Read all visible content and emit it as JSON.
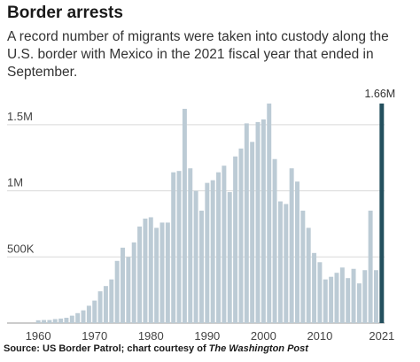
{
  "chart_data": {
    "type": "bar",
    "title": "Border arrests",
    "subtitle": "A record number of migrants were taken into custody along the U.S. border with Mexico in the 2021 fiscal year that ended in September.",
    "xlabel": "",
    "ylabel": "",
    "ylim": [
      0,
      1700000
    ],
    "y_ticks": [
      {
        "value": 500000,
        "label": "500K"
      },
      {
        "value": 1000000,
        "label": "1M"
      },
      {
        "value": 1500000,
        "label": "1.5M"
      }
    ],
    "x_ticks": [
      {
        "value": 1960,
        "label": "1960"
      },
      {
        "value": 1970,
        "label": "1970"
      },
      {
        "value": 1980,
        "label": "1980"
      },
      {
        "value": 1990,
        "label": "1990"
      },
      {
        "value": 2000,
        "label": "2000"
      },
      {
        "value": 2010,
        "label": "2010"
      },
      {
        "value": 2021,
        "label": "2021"
      }
    ],
    "grid": true,
    "highlight": {
      "year": 2021,
      "label": "1.66M",
      "color": "#24505e"
    },
    "bar_color": "#bccbd5",
    "years": [
      1960,
      1961,
      1962,
      1963,
      1964,
      1965,
      1966,
      1967,
      1968,
      1969,
      1970,
      1971,
      1972,
      1973,
      1974,
      1975,
      1976,
      1977,
      1978,
      1979,
      1980,
      1981,
      1982,
      1983,
      1984,
      1985,
      1986,
      1987,
      1988,
      1989,
      1990,
      1991,
      1992,
      1993,
      1994,
      1995,
      1996,
      1997,
      1998,
      1999,
      2000,
      2001,
      2002,
      2003,
      2004,
      2005,
      2006,
      2007,
      2008,
      2009,
      2010,
      2011,
      2012,
      2013,
      2014,
      2015,
      2016,
      2017,
      2018,
      2019,
      2020,
      2021
    ],
    "values": [
      21000,
      23000,
      23000,
      30000,
      34000,
      40000,
      56000,
      75000,
      96000,
      131000,
      170000,
      240000,
      280000,
      330000,
      470000,
      570000,
      500000,
      610000,
      730000,
      790000,
      800000,
      720000,
      760000,
      760000,
      1140000,
      1150000,
      1620000,
      1170000,
      1000000,
      850000,
      1060000,
      1080000,
      1140000,
      1190000,
      990000,
      1260000,
      1320000,
      1510000,
      1370000,
      1520000,
      1540000,
      1660000,
      1240000,
      920000,
      900000,
      1170000,
      1070000,
      850000,
      720000,
      530000,
      460000,
      330000,
      350000,
      380000,
      420000,
      340000,
      410000,
      300000,
      400000,
      850000,
      400000,
      1660000
    ]
  },
  "source": {
    "prefix": "Source: US Border Patrol; chart courtesy of ",
    "publication": "The Washington Post"
  }
}
